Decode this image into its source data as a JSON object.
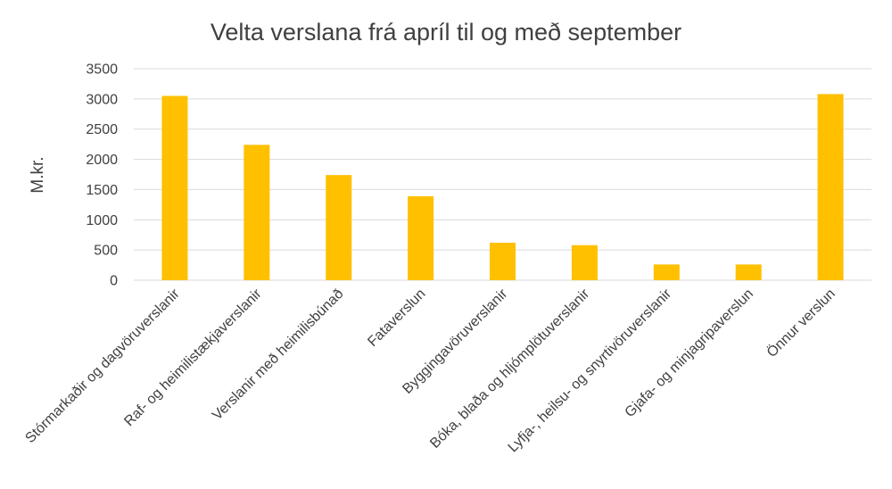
{
  "chart_data": {
    "type": "bar",
    "title": "Velta verslana frá apríl til og með september",
    "xlabel": "",
    "ylabel": "M.kr.",
    "ylim": [
      0,
      3500
    ],
    "yticks": [
      0,
      500,
      1000,
      1500,
      2000,
      2500,
      3000,
      3500
    ],
    "grid": true,
    "legend": "none",
    "bar_color": "#FFC000",
    "gridline_color": "#D9D9D9",
    "categories": [
      "Stórmarkaðir og dagvöruverslanir",
      "Raf- og heimilistækjaverslanir",
      "Verslanir með heimilisbúnað",
      "Fataverslun",
      "Byggingavöruverslanir",
      "Bóka, blaða og hljómplötuverslanir",
      "Lyfja-, heilsu- og snyrtivöruverslanir",
      "Gjafa- og minjagripaverslun",
      "Önnur verslun"
    ],
    "values": [
      3050,
      2240,
      1740,
      1390,
      620,
      580,
      260,
      260,
      3080
    ]
  }
}
